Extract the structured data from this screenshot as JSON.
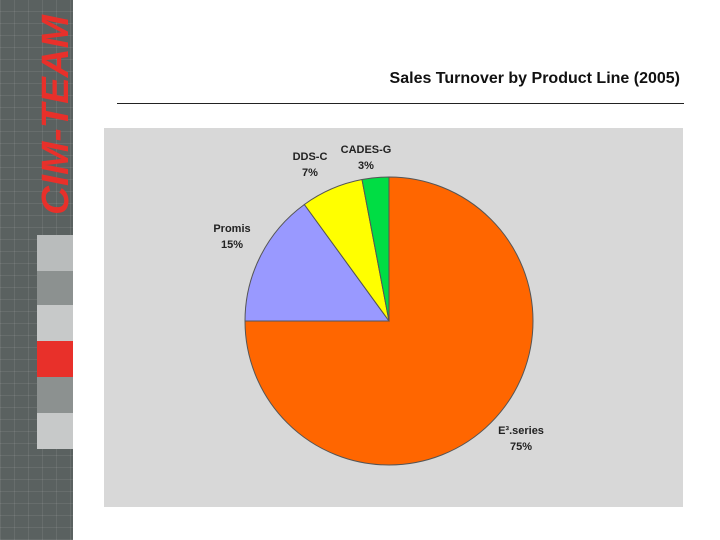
{
  "brand": {
    "logo_text": "CIM-TEAM"
  },
  "colors": {
    "sidebar": "#5a6160",
    "accent_red": "#e8302a",
    "plot_bg": "#d8d8d8"
  },
  "chart_data": {
    "type": "pie",
    "title": "Sales Turnover by Product Line (2005)",
    "slices": [
      {
        "name": "E³.series",
        "value": 75,
        "label": "75%",
        "color": "#ff6600"
      },
      {
        "name": "Promis",
        "value": 15,
        "label": "15%",
        "color": "#9999ff"
      },
      {
        "name": "DDS-C",
        "value": 7,
        "label": "7%",
        "color": "#ffff00"
      },
      {
        "name": "CADES-G",
        "value": 3,
        "label": "3%",
        "color": "#00dd44"
      }
    ],
    "start_angle_deg": 0,
    "direction": "clockwise"
  }
}
